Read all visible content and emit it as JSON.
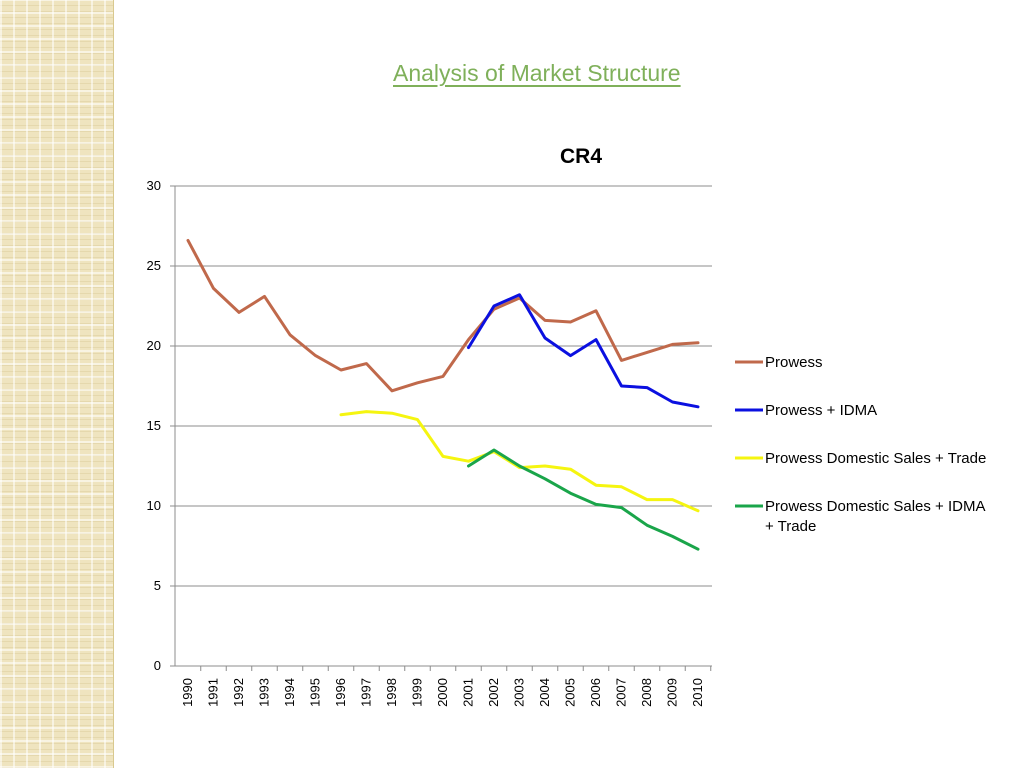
{
  "slide": {
    "title": "Analysis of Market Structure"
  },
  "chart_data": {
    "type": "line",
    "title": "CR4",
    "xlabel": "",
    "ylabel": "",
    "ylim": [
      0,
      30
    ],
    "yticks": [
      0,
      5,
      10,
      15,
      20,
      25,
      30
    ],
    "grid": "horizontal",
    "legend_position": "right",
    "x": [
      "1990",
      "1991",
      "1992",
      "1993",
      "1994",
      "1995",
      "1996",
      "1997",
      "1998",
      "1999",
      "2000",
      "2001",
      "2002",
      "2003",
      "2004",
      "2005",
      "2006",
      "2007",
      "2008",
      "2009",
      "2010"
    ],
    "series": [
      {
        "name": "Prowess",
        "color": "#c0694b",
        "values": [
          26.6,
          23.6,
          22.1,
          23.1,
          20.7,
          19.4,
          18.5,
          18.9,
          17.2,
          17.7,
          18.1,
          20.4,
          22.3,
          23.0,
          21.6,
          21.5,
          22.2,
          19.1,
          19.6,
          20.1,
          20.2
        ]
      },
      {
        "name": "Prowess + IDMA",
        "color": "#0b10e0",
        "values": [
          null,
          null,
          null,
          null,
          null,
          null,
          null,
          null,
          null,
          null,
          null,
          19.9,
          22.5,
          23.2,
          20.5,
          19.4,
          20.4,
          17.5,
          17.4,
          16.5,
          16.2
        ]
      },
      {
        "name": "Prowess Domestic Sales + Trade",
        "color": "#f5f510",
        "values": [
          null,
          null,
          null,
          null,
          null,
          null,
          15.7,
          15.9,
          15.8,
          15.4,
          13.1,
          12.8,
          13.4,
          12.4,
          12.5,
          12.3,
          11.3,
          11.2,
          10.4,
          10.4,
          9.7
        ]
      },
      {
        "name": "Prowess Domestic Sales + IDMA + Trade",
        "color": "#1aa54a",
        "values": [
          null,
          null,
          null,
          null,
          null,
          null,
          null,
          null,
          null,
          null,
          null,
          12.5,
          13.5,
          12.5,
          11.7,
          10.8,
          10.1,
          9.9,
          8.8,
          8.1,
          7.3
        ]
      }
    ]
  }
}
